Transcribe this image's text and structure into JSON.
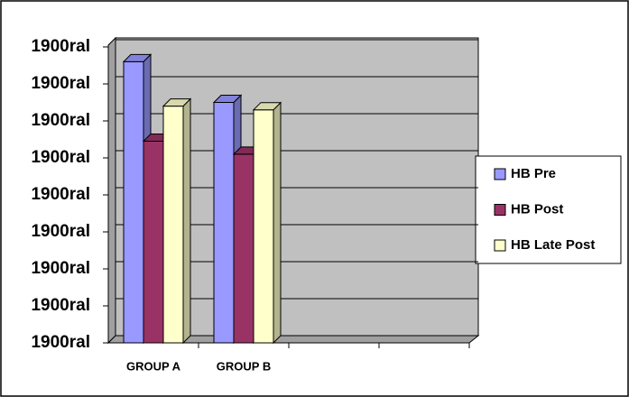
{
  "chart_data": {
    "type": "bar3d",
    "categories": [
      "GROUP A",
      "GROUP B",
      null,
      null
    ],
    "series": [
      {
        "name": "HB Pre",
        "color": "#9999ff",
        "values": [
          7.6,
          6.5,
          null,
          null
        ]
      },
      {
        "name": "HB Post",
        "color": "#993366",
        "values": [
          5.45,
          5.1,
          null,
          null
        ]
      },
      {
        "name": "HB Late Post",
        "color": "#ffffcc",
        "values": [
          6.4,
          6.3,
          null,
          null
        ]
      }
    ],
    "ylim": [
      0,
      8
    ],
    "yticks": [
      {
        "value": 0,
        "label": "1900ral"
      },
      {
        "value": 1,
        "label": "1900ral"
      },
      {
        "value": 2,
        "label": "1900ral"
      },
      {
        "value": 3,
        "label": "1900ral"
      },
      {
        "value": 4,
        "label": "1900ral"
      },
      {
        "value": 5,
        "label": "1900ral"
      },
      {
        "value": 6,
        "label": "1900ral"
      },
      {
        "value": 7,
        "label": "1900ral"
      },
      {
        "value": 8,
        "label": "1900ral"
      }
    ],
    "grid": true,
    "legend": "right"
  }
}
